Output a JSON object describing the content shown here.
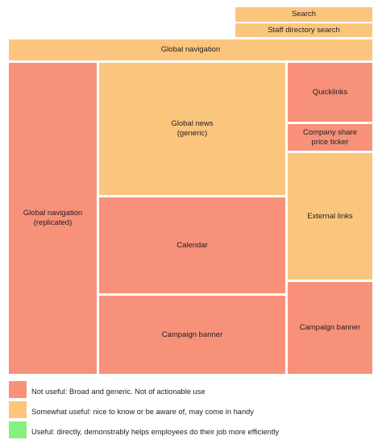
{
  "blocks": {
    "search": {
      "label": "Search",
      "color": "#fcc57d"
    },
    "staff_directory_search": {
      "label": "Staff directory search",
      "color": "#fcc57d"
    },
    "global_navigation": {
      "label": "Global navigation",
      "color": "#fcc57d"
    },
    "global_navigation_replicated": {
      "label": "Global navigation\n(replicated)",
      "color": "#f7917a"
    },
    "global_news": {
      "label": "Global news\n(generic)",
      "color": "#fcc57d"
    },
    "quicklinks": {
      "label": "Quicklinks",
      "color": "#f7917a"
    },
    "company_share_price_ticker": {
      "label": "Company share\nprice ticker",
      "color": "#f7917a"
    },
    "external_links": {
      "label": "External links",
      "color": "#fcc57d"
    },
    "calendar": {
      "label": "Calendar",
      "color": "#f7917a"
    },
    "campaign_banner_center": {
      "label": "Campaign banner",
      "color": "#f7917a"
    },
    "campaign_banner_right": {
      "label": "Campaign banner",
      "color": "#f7917a"
    }
  },
  "legend": [
    {
      "color": "#f7917a",
      "text": "Not useful: Broad and generic. Not of actionable use"
    },
    {
      "color": "#fcc57d",
      "text": "Somewhat useful: nice to know or be aware of, may come in handy"
    },
    {
      "color": "#86f07f",
      "text": "Useful: directly, demonstrably helps employees do their job more efficiently"
    }
  ]
}
